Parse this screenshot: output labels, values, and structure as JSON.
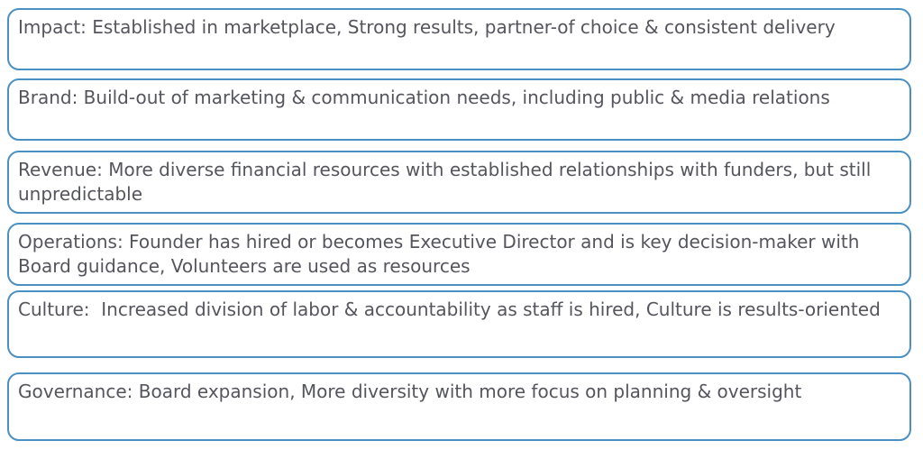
{
  "colors": {
    "box_border": "#4b90c2",
    "text": "#55555e",
    "box_background": "#ffffff",
    "page_background": "#ffffff"
  },
  "boxes": [
    {
      "id": "impact",
      "label": "Impact",
      "text": "Impact: Established in marketplace, Strong results, partner-of choice & consistent delivery"
    },
    {
      "id": "brand",
      "label": "Brand",
      "text": "Brand: Build-out of marketing & communication needs, including public & media relations"
    },
    {
      "id": "revenue",
      "label": "Revenue",
      "text": "Revenue: More diverse financial resources with established relationships with funders, but still unpredictable"
    },
    {
      "id": "operations",
      "label": "Operations",
      "text": "Operations: Founder has hired or becomes Executive Director and is key decision-maker with Board guidance, Volunteers are used as resources"
    },
    {
      "id": "culture",
      "label": "Culture",
      "text": "Culture:  Increased division of labor & accountability as staff is hired, Culture is results-oriented"
    },
    {
      "id": "governance",
      "label": "Governance",
      "text": "Governance: Board expansion, More diversity with more focus on planning & oversight"
    }
  ]
}
